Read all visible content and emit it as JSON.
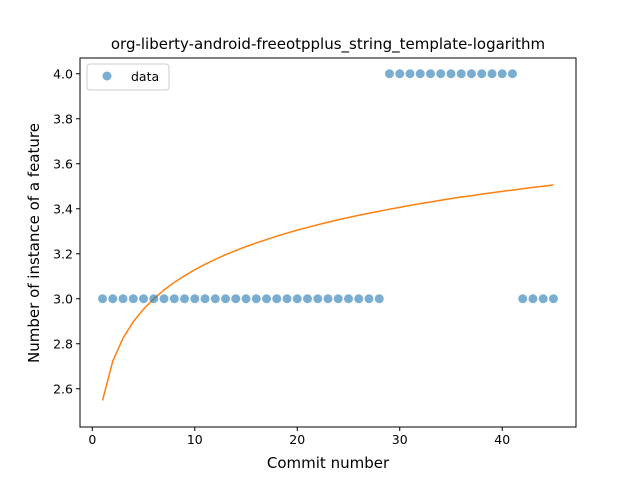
{
  "chart_data": {
    "type": "scatter",
    "title": "org-liberty-android-freeotpplus_string_template-logarithm",
    "xlabel": "Commit number",
    "ylabel": "Number of instance of a feature",
    "xlim": [
      -1.2,
      47.2
    ],
    "ylim": [
      2.43,
      4.07
    ],
    "xticks": [
      0,
      10,
      20,
      30,
      40
    ],
    "yticks": [
      2.6,
      2.8,
      3.0,
      3.2,
      3.4,
      3.6,
      3.8,
      4.0
    ],
    "xtick_labels": [
      "0",
      "10",
      "20",
      "30",
      "40"
    ],
    "ytick_labels": [
      "2.6",
      "2.8",
      "3.0",
      "3.2",
      "3.4",
      "3.6",
      "3.8",
      "4.0"
    ],
    "grid": false,
    "legend": {
      "placement": "top-left",
      "entries": [
        "data"
      ]
    },
    "series": [
      {
        "name": "data",
        "kind": "scatter",
        "color": "#1f77b4",
        "x": [
          1,
          2,
          3,
          4,
          5,
          6,
          7,
          8,
          9,
          10,
          11,
          12,
          13,
          14,
          15,
          16,
          17,
          18,
          19,
          20,
          21,
          22,
          23,
          24,
          25,
          26,
          27,
          28,
          29,
          30,
          31,
          32,
          33,
          34,
          35,
          36,
          37,
          38,
          39,
          40,
          41,
          42,
          43,
          44,
          45
        ],
        "y": [
          3,
          3,
          3,
          3,
          3,
          3,
          3,
          3,
          3,
          3,
          3,
          3,
          3,
          3,
          3,
          3,
          3,
          3,
          3,
          3,
          3,
          3,
          3,
          3,
          3,
          3,
          3,
          3,
          4,
          4,
          4,
          4,
          4,
          4,
          4,
          4,
          4,
          4,
          4,
          4,
          4,
          3,
          3,
          3,
          3
        ]
      },
      {
        "kind": "line",
        "color": "#ff7f0e",
        "x": [
          1,
          2,
          3,
          4,
          5,
          6,
          7,
          8,
          9,
          10,
          11,
          12,
          13,
          14,
          15,
          16,
          17,
          18,
          19,
          20,
          21,
          22,
          23,
          24,
          25,
          26,
          27,
          28,
          29,
          30,
          31,
          32,
          33,
          34,
          35,
          36,
          37,
          38,
          39,
          40,
          41,
          42,
          43,
          44,
          45
        ],
        "y": [
          2.548,
          2.723,
          2.825,
          2.898,
          2.954,
          3.0,
          3.039,
          3.073,
          3.102,
          3.129,
          3.153,
          3.175,
          3.196,
          3.214,
          3.232,
          3.248,
          3.263,
          3.278,
          3.292,
          3.305,
          3.317,
          3.329,
          3.34,
          3.351,
          3.361,
          3.371,
          3.38,
          3.389,
          3.398,
          3.406,
          3.415,
          3.423,
          3.43,
          3.438,
          3.445,
          3.452,
          3.458,
          3.465,
          3.471,
          3.477,
          3.483,
          3.489,
          3.495,
          3.5,
          3.506
        ]
      }
    ]
  }
}
